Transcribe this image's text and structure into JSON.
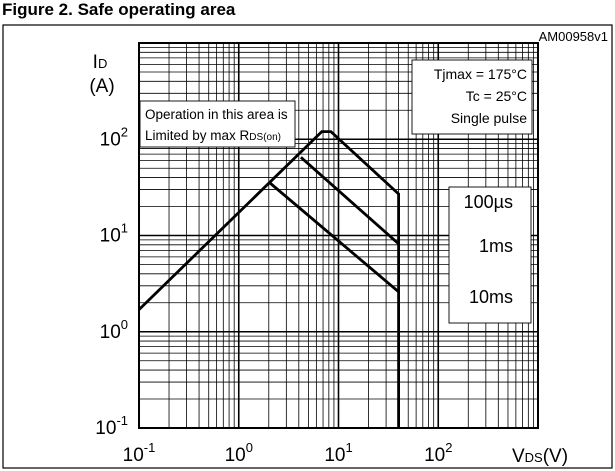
{
  "figure_title": "Figure 2. Safe operating area",
  "figure_code": "AM00958v1",
  "chart_data": {
    "type": "line",
    "title": "Safe operating area",
    "x_axis": {
      "label": "VDS(V)",
      "label_main": "V",
      "label_sub": "DS",
      "label_unit": "(V)",
      "scale": "log",
      "range": [
        0.1,
        1000
      ],
      "ticks": [
        {
          "value": 0.1,
          "base": "10",
          "exp": "-1"
        },
        {
          "value": 1,
          "base": "10",
          "exp": "0"
        },
        {
          "value": 10,
          "base": "10",
          "exp": "1"
        },
        {
          "value": 100,
          "base": "10",
          "exp": "2"
        }
      ]
    },
    "y_axis": {
      "label_line1_main": "I",
      "label_line1_sub": "D",
      "label_line2": "(A)",
      "scale": "log",
      "range": [
        0.1,
        1000
      ],
      "ticks": [
        {
          "value": 0.1,
          "base": "10",
          "exp": "-1"
        },
        {
          "value": 1,
          "base": "10",
          "exp": "0"
        },
        {
          "value": 10,
          "base": "10",
          "exp": "1"
        },
        {
          "value": 100,
          "base": "10",
          "exp": "2"
        }
      ]
    },
    "grid": true,
    "series": [
      {
        "name": "",
        "points": [
          [
            0.1,
            1.7
          ],
          [
            6.8,
            120
          ],
          [
            8.4,
            120
          ],
          [
            40,
            27
          ],
          [
            40,
            0.1
          ]
        ]
      },
      {
        "name": "",
        "points": [
          [
            4.2,
            65
          ],
          [
            40,
            8.2
          ]
        ]
      },
      {
        "name": "",
        "points": [
          [
            2.0,
            36
          ],
          [
            40,
            2.6
          ]
        ]
      }
    ],
    "curve_labels": [
      {
        "text": "100µs",
        "value": 25
      },
      {
        "text": "1ms",
        "value": 8.0
      },
      {
        "text": "10ms",
        "value": 2.6
      }
    ],
    "conditions": {
      "lines": [
        "Tjmax = 175°C",
        "Tc = 25°C",
        "Single pulse"
      ]
    },
    "annotation": {
      "line1": "Operation in this area is",
      "line2_main": "Limited by max R",
      "line2_sub": "DS(on)"
    }
  }
}
